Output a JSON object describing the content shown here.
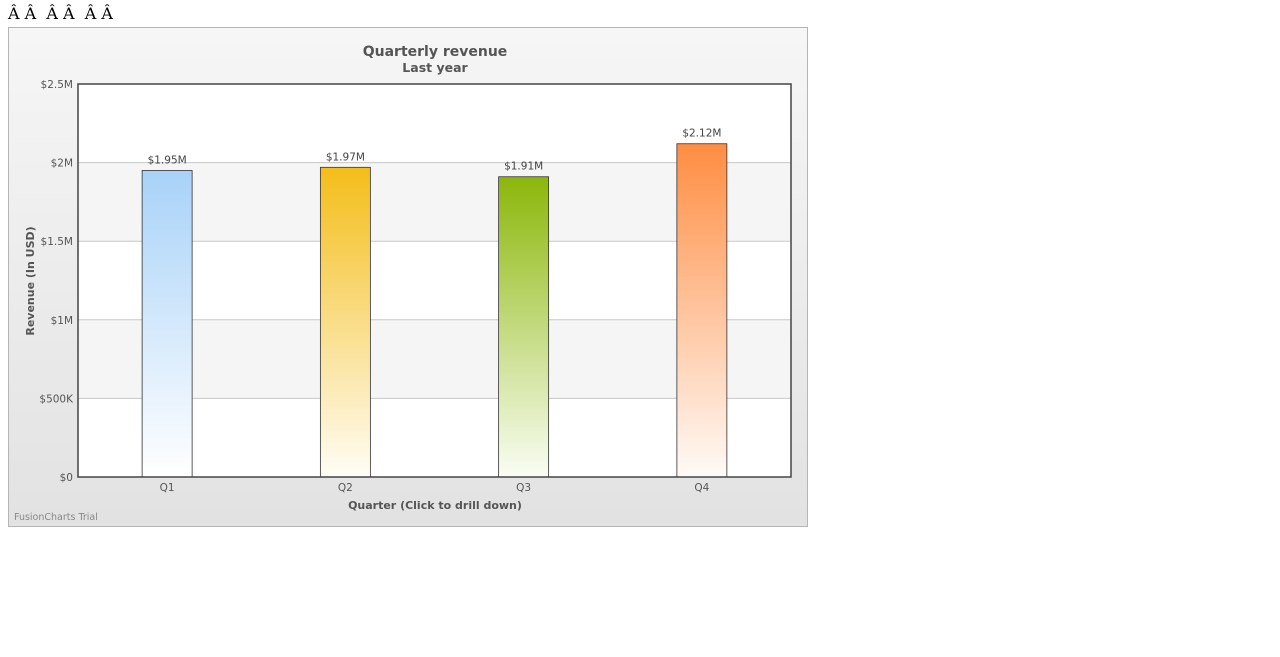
{
  "page": {
    "garbled_text": "Â Â  Â Â  Â Â"
  },
  "chart_data": {
    "type": "bar",
    "title": "Quarterly revenue",
    "subtitle": "Last year",
    "xlabel": "Quarter (Click to drill down)",
    "ylabel": "Revenue (In USD)",
    "categories": [
      "Q1",
      "Q2",
      "Q3",
      "Q4"
    ],
    "values": [
      1950000,
      1970000,
      1910000,
      2120000
    ],
    "value_labels": [
      "$1.95M",
      "$1.97M",
      "$1.91M",
      "$2.12M"
    ],
    "ylim": [
      0,
      2500000
    ],
    "yticks": [
      0,
      500000,
      1000000,
      1500000,
      2000000,
      2500000
    ],
    "ytick_labels": [
      "$0",
      "$500K",
      "$1M",
      "$1.5M",
      "$2M",
      "$2.5M"
    ],
    "grid": true,
    "bar_colors": [
      {
        "top": "#a8d2f8",
        "bottom": "#ffffff"
      },
      {
        "top": "#f4bd1a",
        "bottom": "#fffdf5"
      },
      {
        "top": "#8bb70a",
        "bottom": "#fafdf4"
      },
      {
        "top": "#ff8d42",
        "bottom": "#fffaf8"
      }
    ],
    "watermark": "FusionCharts Trial"
  }
}
